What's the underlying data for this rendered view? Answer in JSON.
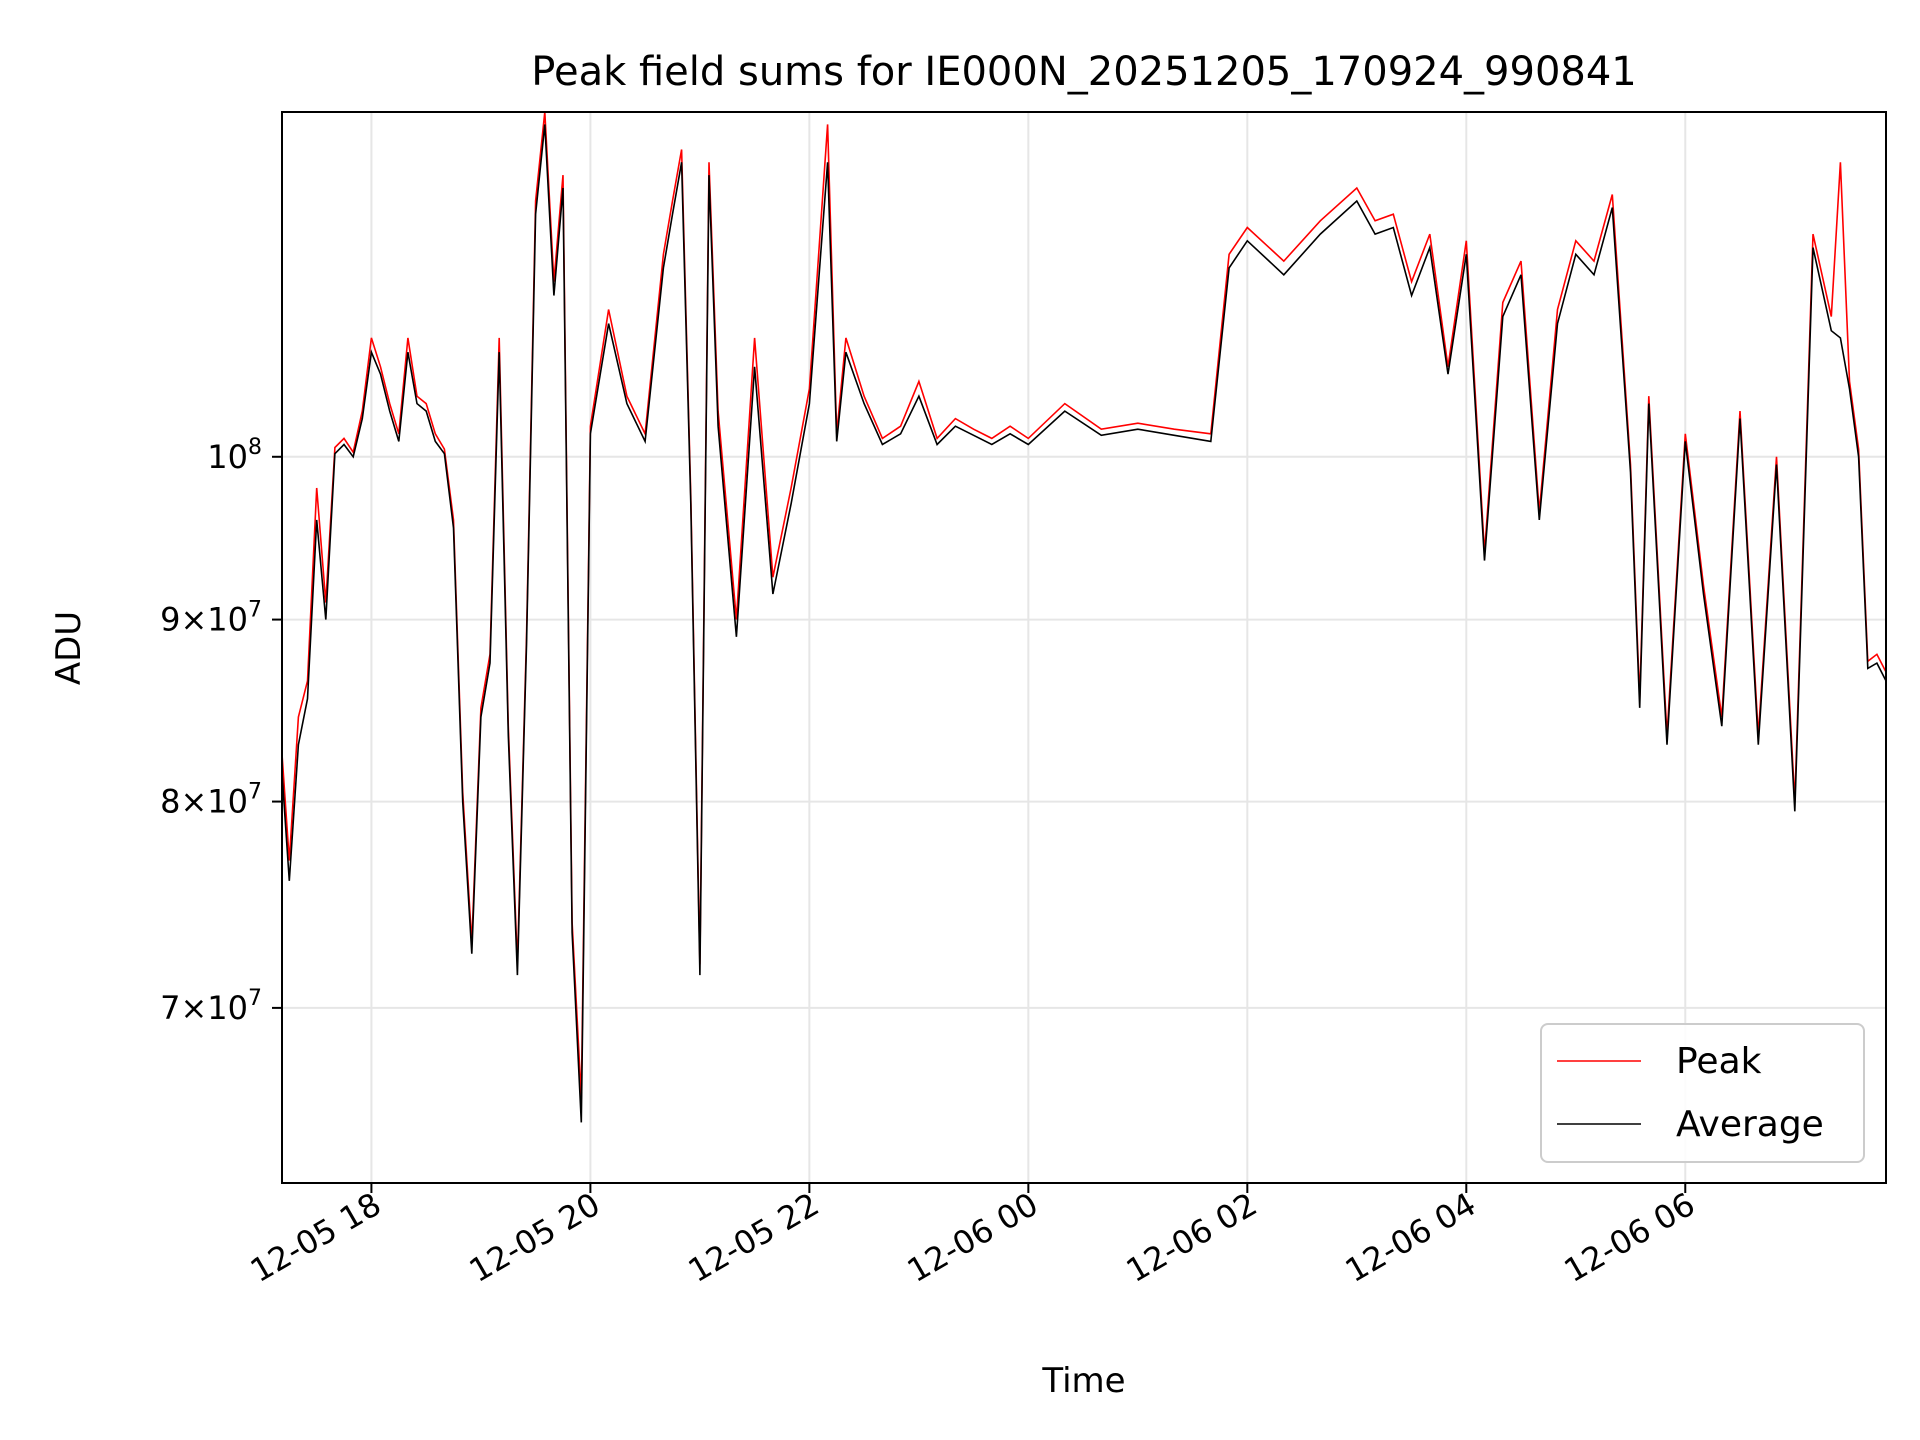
{
  "chart_data": {
    "type": "line",
    "title": "Peak field sums for IE000N_20251205_170924_990841",
    "xlabel": "Time",
    "ylabel": "ADU",
    "y_scale": "log",
    "ylim": [
      62500000,
      125000000
    ],
    "xlim": [
      "2025-12-05 17:11",
      "2025-12-06 07:50"
    ],
    "grid": true,
    "legend_position": "lower right",
    "x_ticks": [
      {
        "value": "2025-12-05 18:00",
        "label": "12-05 18"
      },
      {
        "value": "2025-12-05 20:00",
        "label": "12-05 20"
      },
      {
        "value": "2025-12-05 22:00",
        "label": "12-05 22"
      },
      {
        "value": "2025-12-06 00:00",
        "label": "12-06 00"
      },
      {
        "value": "2025-12-06 02:00",
        "label": "12-06 02"
      },
      {
        "value": "2025-12-06 04:00",
        "label": "12-06 04"
      },
      {
        "value": "2025-12-06 06:00",
        "label": "12-06 06"
      }
    ],
    "y_ticks": [
      {
        "value": 70000000,
        "base": "7",
        "exp": "7"
      },
      {
        "value": 80000000,
        "base": "8",
        "exp": "7"
      },
      {
        "value": 90000000,
        "base": "9",
        "exp": "7"
      },
      {
        "value": 100000000,
        "base": "",
        "exp": "8"
      }
    ],
    "y_tick_times": "×",
    "y_tick_ten": "10",
    "series": [
      {
        "name": "Peak",
        "color": "#ff0000",
        "x": [
          "2025-12-05 17:11",
          "2025-12-05 17:15",
          "2025-12-05 17:20",
          "2025-12-05 17:25",
          "2025-12-05 17:30",
          "2025-12-05 17:35",
          "2025-12-05 17:40",
          "2025-12-05 17:45",
          "2025-12-05 17:50",
          "2025-12-05 17:55",
          "2025-12-05 18:00",
          "2025-12-05 18:05",
          "2025-12-05 18:10",
          "2025-12-05 18:15",
          "2025-12-05 18:20",
          "2025-12-05 18:25",
          "2025-12-05 18:30",
          "2025-12-05 18:35",
          "2025-12-05 18:40",
          "2025-12-05 18:45",
          "2025-12-05 18:50",
          "2025-12-05 18:55",
          "2025-12-05 19:00",
          "2025-12-05 19:05",
          "2025-12-05 19:10",
          "2025-12-05 19:15",
          "2025-12-05 19:20",
          "2025-12-05 19:25",
          "2025-12-05 19:30",
          "2025-12-05 19:35",
          "2025-12-05 19:40",
          "2025-12-05 19:45",
          "2025-12-05 19:50",
          "2025-12-05 19:55",
          "2025-12-05 20:00",
          "2025-12-05 20:10",
          "2025-12-05 20:20",
          "2025-12-05 20:30",
          "2025-12-05 20:40",
          "2025-12-05 20:45",
          "2025-12-05 20:50",
          "2025-12-05 20:55",
          "2025-12-05 21:00",
          "2025-12-05 21:05",
          "2025-12-05 21:10",
          "2025-12-05 21:20",
          "2025-12-05 21:30",
          "2025-12-05 21:40",
          "2025-12-05 21:50",
          "2025-12-05 22:00",
          "2025-12-05 22:10",
          "2025-12-05 22:15",
          "2025-12-05 22:20",
          "2025-12-05 22:30",
          "2025-12-05 22:40",
          "2025-12-05 22:50",
          "2025-12-05 23:00",
          "2025-12-05 23:10",
          "2025-12-05 23:20",
          "2025-12-05 23:30",
          "2025-12-05 23:40",
          "2025-12-05 23:50",
          "2025-12-06 00:00",
          "2025-12-06 00:20",
          "2025-12-06 00:40",
          "2025-12-06 01:00",
          "2025-12-06 01:20",
          "2025-12-06 01:40",
          "2025-12-06 01:50",
          "2025-12-06 02:00",
          "2025-12-06 02:20",
          "2025-12-06 02:40",
          "2025-12-06 03:00",
          "2025-12-06 03:10",
          "2025-12-06 03:20",
          "2025-12-06 03:30",
          "2025-12-06 03:40",
          "2025-12-06 03:50",
          "2025-12-06 04:00",
          "2025-12-06 04:10",
          "2025-12-06 04:20",
          "2025-12-06 04:30",
          "2025-12-06 04:40",
          "2025-12-06 04:50",
          "2025-12-06 05:00",
          "2025-12-06 05:10",
          "2025-12-06 05:20",
          "2025-12-06 05:30",
          "2025-12-06 05:35",
          "2025-12-06 05:40",
          "2025-12-06 05:50",
          "2025-12-06 06:00",
          "2025-12-06 06:10",
          "2025-12-06 06:20",
          "2025-12-06 06:30",
          "2025-12-06 06:40",
          "2025-12-06 06:50",
          "2025-12-06 07:00",
          "2025-12-06 07:10",
          "2025-12-06 07:20",
          "2025-12-06 07:25",
          "2025-12-06 07:30",
          "2025-12-06 07:35",
          "2025-12-06 07:40",
          "2025-12-06 07:45",
          "2025-12-06 07:50"
        ],
        "y": [
          82500000,
          77000000,
          84500000,
          86500000,
          98000000,
          91000000,
          100600000,
          101200000,
          100300000,
          103000000,
          108000000,
          106000000,
          103500000,
          101500000,
          108000000,
          104000000,
          103500000,
          101500000,
          100500000,
          96000000,
          80500000,
          73000000,
          85000000,
          88000000,
          108000000,
          84000000,
          72000000,
          89000000,
          118000000,
          125000000,
          112000000,
          120000000,
          74000000,
          66000000,
          102000000,
          110000000,
          104000000,
          101500000,
          114000000,
          118000000,
          122000000,
          97500000,
          72000000,
          121000000,
          103000000,
          90000000,
          108000000,
          92500000,
          98000000,
          104500000,
          124000000,
          101500000,
          108000000,
          104000000,
          101200000,
          102000000,
          105000000,
          101200000,
          102500000,
          101800000,
          101200000,
          102000000,
          101200000,
          103500000,
          101800000,
          102200000,
          101800000,
          101500000,
          114000000,
          116000000,
          113500000,
          116500000,
          119000000,
          116500000,
          117000000,
          112000000,
          115500000,
          106000000,
          115000000,
          94000000,
          110500000,
          113500000,
          96500000,
          110000000,
          115000000,
          113500000,
          118500000,
          99500000,
          85500000,
          104000000,
          83500000,
          101500000,
          92000000,
          84500000,
          103000000,
          83500000,
          100000000,
          80000000,
          115500000,
          109500000,
          121000000,
          105000000,
          100500000,
          87600000,
          88000000,
          87000000
        ]
      },
      {
        "name": "Average",
        "color": "#000000",
        "x": [
          "2025-12-05 17:11",
          "2025-12-05 17:15",
          "2025-12-05 17:20",
          "2025-12-05 17:25",
          "2025-12-05 17:30",
          "2025-12-05 17:35",
          "2025-12-05 17:40",
          "2025-12-05 17:45",
          "2025-12-05 17:50",
          "2025-12-05 17:55",
          "2025-12-05 18:00",
          "2025-12-05 18:05",
          "2025-12-05 18:10",
          "2025-12-05 18:15",
          "2025-12-05 18:20",
          "2025-12-05 18:25",
          "2025-12-05 18:30",
          "2025-12-05 18:35",
          "2025-12-05 18:40",
          "2025-12-05 18:45",
          "2025-12-05 18:50",
          "2025-12-05 18:55",
          "2025-12-05 19:00",
          "2025-12-05 19:05",
          "2025-12-05 19:10",
          "2025-12-05 19:15",
          "2025-12-05 19:20",
          "2025-12-05 19:25",
          "2025-12-05 19:30",
          "2025-12-05 19:35",
          "2025-12-05 19:40",
          "2025-12-05 19:45",
          "2025-12-05 19:50",
          "2025-12-05 19:55",
          "2025-12-05 20:00",
          "2025-12-05 20:10",
          "2025-12-05 20:20",
          "2025-12-05 20:30",
          "2025-12-05 20:40",
          "2025-12-05 20:45",
          "2025-12-05 20:50",
          "2025-12-05 20:55",
          "2025-12-05 21:00",
          "2025-12-05 21:05",
          "2025-12-05 21:10",
          "2025-12-05 21:20",
          "2025-12-05 21:30",
          "2025-12-05 21:40",
          "2025-12-05 21:50",
          "2025-12-05 22:00",
          "2025-12-05 22:10",
          "2025-12-05 22:15",
          "2025-12-05 22:20",
          "2025-12-05 22:30",
          "2025-12-05 22:40",
          "2025-12-05 22:50",
          "2025-12-05 23:00",
          "2025-12-05 23:10",
          "2025-12-05 23:20",
          "2025-12-05 23:30",
          "2025-12-05 23:40",
          "2025-12-05 23:50",
          "2025-12-06 00:00",
          "2025-12-06 00:20",
          "2025-12-06 00:40",
          "2025-12-06 01:00",
          "2025-12-06 01:20",
          "2025-12-06 01:40",
          "2025-12-06 01:50",
          "2025-12-06 02:00",
          "2025-12-06 02:20",
          "2025-12-06 02:40",
          "2025-12-06 03:00",
          "2025-12-06 03:10",
          "2025-12-06 03:20",
          "2025-12-06 03:30",
          "2025-12-06 03:40",
          "2025-12-06 03:50",
          "2025-12-06 04:00",
          "2025-12-06 04:10",
          "2025-12-06 04:20",
          "2025-12-06 04:30",
          "2025-12-06 04:40",
          "2025-12-06 04:50",
          "2025-12-06 05:00",
          "2025-12-06 05:10",
          "2025-12-06 05:20",
          "2025-12-06 05:30",
          "2025-12-06 05:35",
          "2025-12-06 05:40",
          "2025-12-06 05:50",
          "2025-12-06 06:00",
          "2025-12-06 06:10",
          "2025-12-06 06:20",
          "2025-12-06 06:30",
          "2025-12-06 06:40",
          "2025-12-06 06:50",
          "2025-12-06 07:00",
          "2025-12-06 07:10",
          "2025-12-06 07:20",
          "2025-12-06 07:25",
          "2025-12-06 07:30",
          "2025-12-06 07:35",
          "2025-12-06 07:40",
          "2025-12-06 07:45",
          "2025-12-06 07:50"
        ],
        "y": [
          81500000,
          76000000,
          83000000,
          85500000,
          96000000,
          90000000,
          100200000,
          100800000,
          100000000,
          102500000,
          107000000,
          105500000,
          103000000,
          101000000,
          107000000,
          103500000,
          103000000,
          101000000,
          100200000,
          95500000,
          80000000,
          72500000,
          84500000,
          87500000,
          107000000,
          83500000,
          71500000,
          88500000,
          117000000,
          124000000,
          111000000,
          119000000,
          73500000,
          65000000,
          101500000,
          109000000,
          103500000,
          101000000,
          113000000,
          117000000,
          121000000,
          97000000,
          71500000,
          120000000,
          102000000,
          89000000,
          106000000,
          91500000,
          97000000,
          103500000,
          121000000,
          101000000,
          107000000,
          103500000,
          100800000,
          101500000,
          104000000,
          100800000,
          102000000,
          101400000,
          100800000,
          101500000,
          100800000,
          103000000,
          101400000,
          101800000,
          101400000,
          101000000,
          113000000,
          115000000,
          112500000,
          115500000,
          118000000,
          115500000,
          116000000,
          111000000,
          114500000,
          105500000,
          114000000,
          93500000,
          109500000,
          112500000,
          96000000,
          109000000,
          114000000,
          112500000,
          117500000,
          99000000,
          85000000,
          103500000,
          83000000,
          101000000,
          91500000,
          84000000,
          102500000,
          83000000,
          99500000,
          79500000,
          114500000,
          108500000,
          108000000,
          104500000,
          100000000,
          87200000,
          87500000,
          86500000
        ]
      }
    ]
  }
}
